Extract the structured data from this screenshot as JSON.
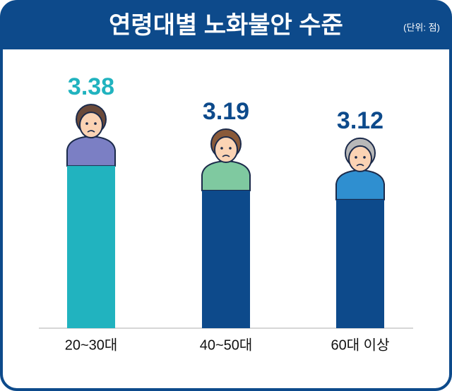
{
  "chart_data": {
    "type": "bar",
    "title": "연령대별 노화불안 수준",
    "unit": "(단위: 점)",
    "categories": [
      "20~30대",
      "40~50대",
      "60대 이상"
    ],
    "values": [
      3.38,
      3.19,
      3.12
    ],
    "colors": [
      "#21b3bf",
      "#0d4a8b",
      "#0d4a8b"
    ],
    "ylim": [
      2.13,
      3.5
    ]
  }
}
